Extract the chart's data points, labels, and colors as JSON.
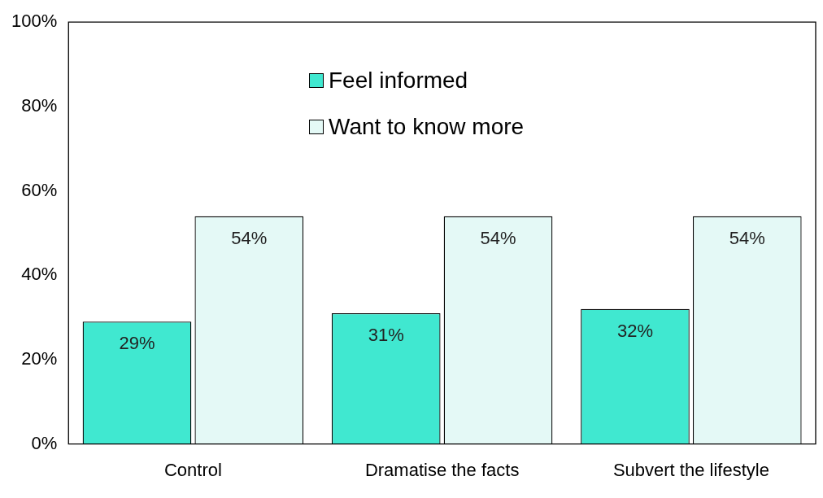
{
  "chart_data": {
    "type": "bar",
    "categories": [
      "Control",
      "Dramatise the facts",
      "Subvert the lifestyle"
    ],
    "series": [
      {
        "name": "Feel informed",
        "color": "#40e8d0",
        "values": [
          29,
          31,
          32
        ],
        "value_labels": [
          "29%",
          "31%",
          "32%"
        ]
      },
      {
        "name": "Want to know more",
        "color": "#e4f9f6",
        "values": [
          54,
          54,
          54
        ],
        "value_labels": [
          "54%",
          "54%",
          "54%"
        ]
      }
    ],
    "ylim": [
      0,
      100
    ],
    "yticks": [
      {
        "value": 0,
        "label": "0%"
      },
      {
        "value": 20,
        "label": "20%"
      },
      {
        "value": 40,
        "label": "40%"
      },
      {
        "value": 60,
        "label": "60%"
      },
      {
        "value": 80,
        "label": "80%"
      },
      {
        "value": 100,
        "label": "100%"
      }
    ],
    "grid": false,
    "legend": "top"
  }
}
